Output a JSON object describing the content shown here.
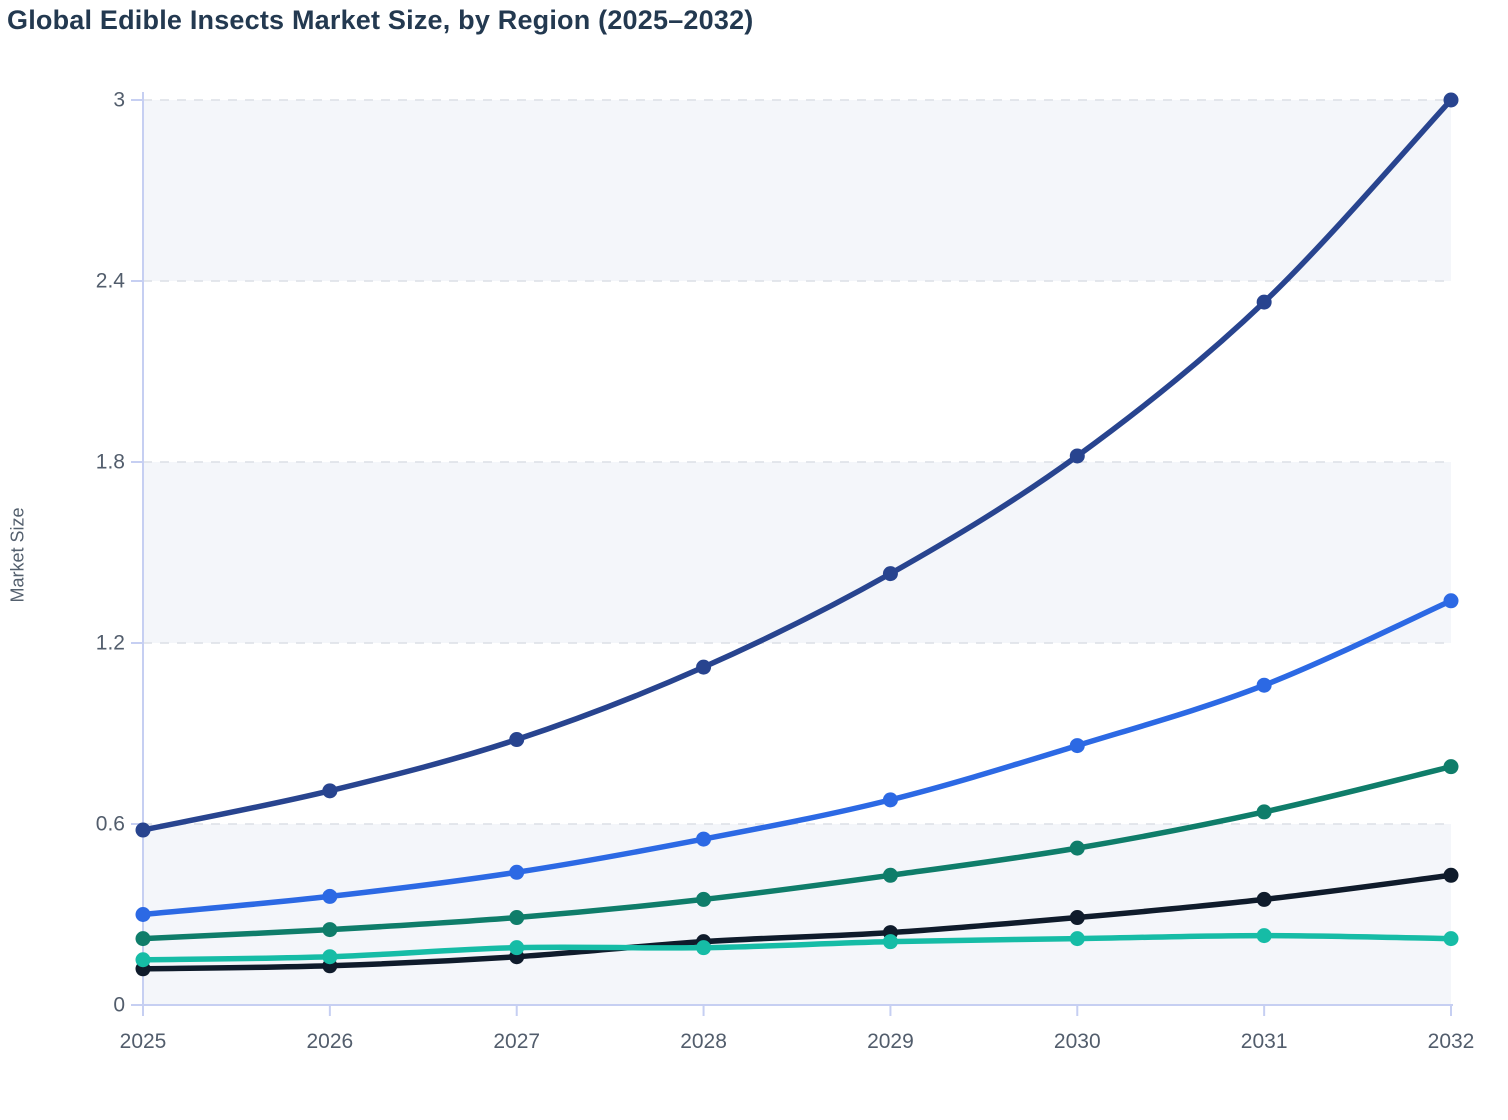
{
  "page": {
    "background": "#ffffff"
  },
  "header": {
    "title": "Global Edible Insects Market Size, by Region (2025–2032)"
  },
  "chart_data": {
    "type": "line",
    "title": "Global Edible Insects Market Size, by Region (2025–2032)",
    "xlabel": "",
    "ylabel": "Market Size",
    "x": [
      "2025",
      "2026",
      "2027",
      "2028",
      "2029",
      "2030",
      "2031",
      "2032"
    ],
    "y_ticks": [
      0,
      0.6,
      1.2,
      1.8,
      2.4,
      3
    ],
    "y_tick_labels": [
      "0",
      "0.6",
      "1.2",
      "1.8",
      "2.4",
      "3"
    ],
    "ylim": [
      0,
      3
    ],
    "grid": "horizontal-dashed",
    "legend": "none",
    "marker": "circle",
    "line_style": "smooth",
    "bands": [
      [
        0,
        0.6
      ],
      [
        1.2,
        1.8
      ],
      [
        2.4,
        3
      ]
    ],
    "series": [
      {
        "name": "navy",
        "color": "#28448f",
        "values": [
          0.58,
          0.71,
          0.88,
          1.12,
          1.43,
          1.82,
          2.33,
          3.0
        ]
      },
      {
        "name": "blue",
        "color": "#2c69e4",
        "values": [
          0.3,
          0.36,
          0.44,
          0.55,
          0.68,
          0.86,
          1.06,
          1.34
        ]
      },
      {
        "name": "teal-dark",
        "color": "#0f7d6a",
        "values": [
          0.22,
          0.25,
          0.29,
          0.35,
          0.43,
          0.52,
          0.64,
          0.79
        ]
      },
      {
        "name": "black",
        "color": "#0f1b2b",
        "values": [
          0.12,
          0.13,
          0.16,
          0.21,
          0.24,
          0.29,
          0.35,
          0.43
        ]
      },
      {
        "name": "turquoise",
        "color": "#16bca6",
        "values": [
          0.15,
          0.16,
          0.19,
          0.19,
          0.21,
          0.22,
          0.23,
          0.22
        ]
      }
    ],
    "colors": {
      "band": "#f4f6fa",
      "grid": "#dbdfe6",
      "axis": "#c6cff2",
      "tick_text": "#525d6c",
      "title_text": "#233950",
      "ylabel_text": "#54606e"
    }
  }
}
